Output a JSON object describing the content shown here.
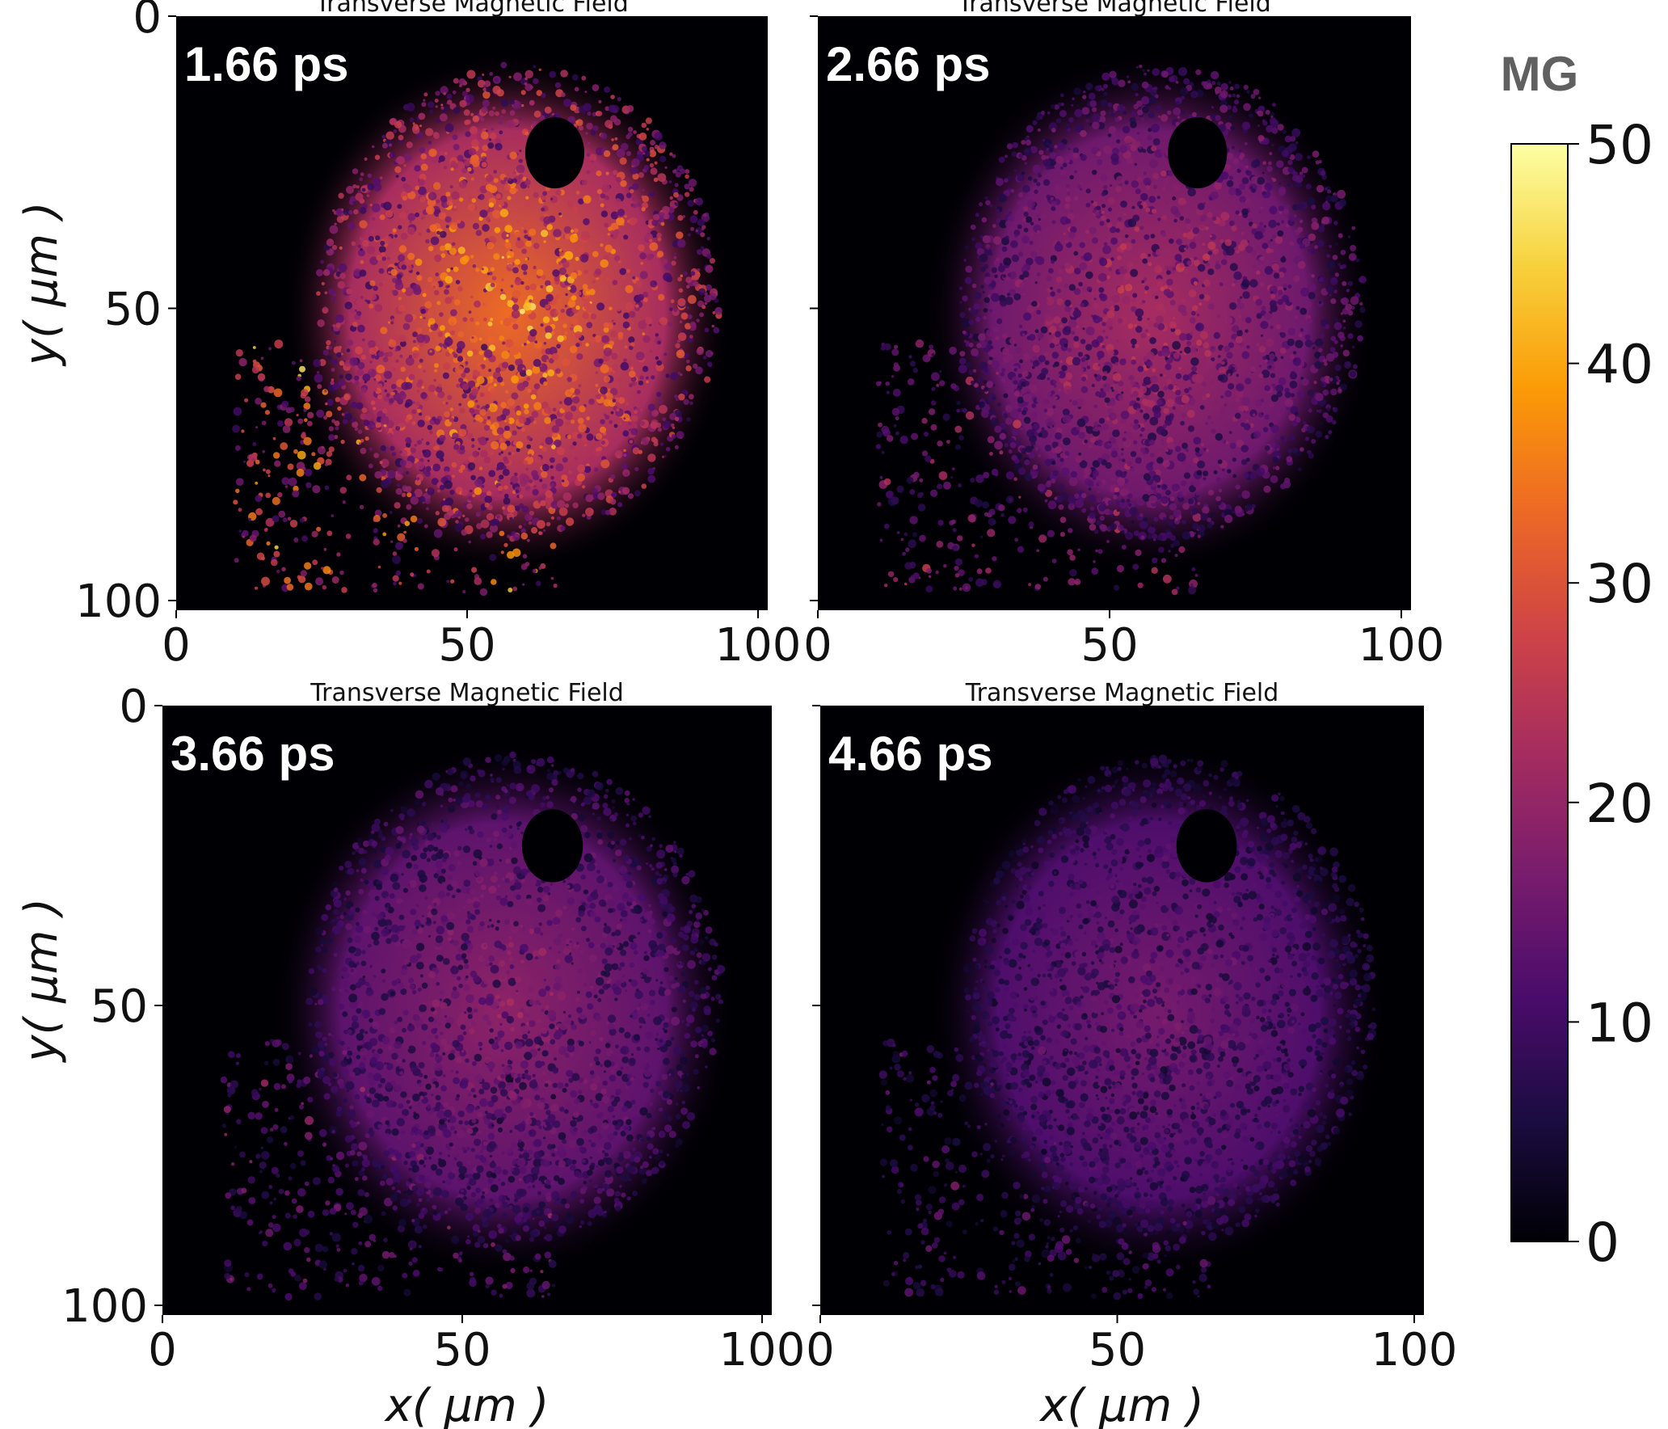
{
  "chart_data": [
    {
      "type": "heatmap",
      "title": "Transverse Magnetic Field",
      "annotation": "1.66 ps",
      "xlabel": "",
      "ylabel": "y( μm )",
      "xlim": [
        0,
        100
      ],
      "ylim": [
        100,
        0
      ],
      "xticks": [
        "0",
        "50",
        "100"
      ],
      "yticks": [
        "0",
        "50",
        "100"
      ],
      "relative_intensity": 1.0
    },
    {
      "type": "heatmap",
      "title": "Transverse Magnetic Field",
      "annotation": "2.66 ps",
      "xlabel": "",
      "ylabel": "",
      "xlim": [
        0,
        100
      ],
      "ylim": [
        100,
        0
      ],
      "xticks": [
        "0",
        "50",
        "100"
      ],
      "yticks": [],
      "relative_intensity": 0.6
    },
    {
      "type": "heatmap",
      "title": "Transverse Magnetic Field",
      "annotation": "3.66 ps",
      "xlabel": "x( μm )",
      "ylabel": "y( μm )",
      "xlim": [
        0,
        100
      ],
      "ylim": [
        100,
        0
      ],
      "xticks": [
        "0",
        "50",
        "100"
      ],
      "yticks": [
        "0",
        "50",
        "100"
      ],
      "relative_intensity": 0.48
    },
    {
      "type": "heatmap",
      "title": "Transverse Magnetic Field",
      "annotation": "4.66 ps",
      "xlabel": "x( μm )",
      "ylabel": "",
      "xlim": [
        0,
        100
      ],
      "ylim": [
        100,
        0
      ],
      "xticks": [
        "0",
        "50",
        "100"
      ],
      "yticks": [],
      "relative_intensity": 0.38
    }
  ],
  "colorbar": {
    "unit": "MG",
    "range": [
      0,
      50
    ],
    "ticks": [
      "0",
      "10",
      "20",
      "30",
      "40",
      "50"
    ],
    "colormap": "inferno",
    "stops": [
      "#000004",
      "#1b0c41",
      "#4a0c6b",
      "#781c6d",
      "#a52c60",
      "#cf4446",
      "#ed6925",
      "#fb9b06",
      "#f7d13d",
      "#fcffa4"
    ]
  },
  "colors": {
    "panel_background": "#000004",
    "annotation_text": "#ffffff",
    "colorbar_unit": "#606060"
  }
}
